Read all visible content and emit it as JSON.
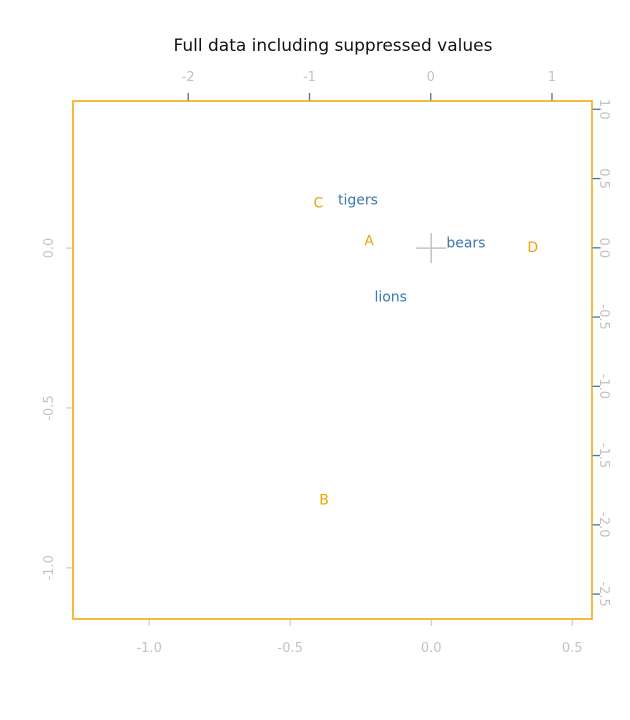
{
  "chart_data": {
    "type": "scatter",
    "title": "Full data including suppressed values",
    "axes": {
      "bottom": {
        "range": [
          -1.27,
          0.57
        ],
        "ticks": [
          -1.0,
          -0.5,
          0.0,
          0.5
        ],
        "tick_labels": [
          "-1.0",
          "-0.5",
          "0.0",
          "0.5"
        ],
        "color": "#c2c2c2"
      },
      "left": {
        "range": [
          -1.16,
          0.46
        ],
        "ticks": [
          0.0,
          -0.5,
          -1.0
        ],
        "tick_labels": [
          "0.0",
          "-0.5",
          "-1.0"
        ],
        "color": "#c2c2c2"
      },
      "top": {
        "range": [
          -2.95,
          1.33
        ],
        "ticks": [
          -2,
          -1,
          0,
          1
        ],
        "tick_labels": [
          "-2",
          "-1",
          "0",
          "1"
        ],
        "color": "#3a78ad"
      },
      "right": {
        "range": [
          -2.68,
          1.06
        ],
        "ticks": [
          1.0,
          0.5,
          0.0,
          -0.5,
          -1.0,
          -1.5,
          -2.0,
          -2.5
        ],
        "tick_labels": [
          "1.0",
          "0.5",
          "0.0",
          "-0.5",
          "-1.0",
          "-1.5",
          "-2.0",
          "-2.5"
        ],
        "color": "#3a78ad"
      }
    },
    "series": [
      {
        "axes": [
          "bottom",
          "left"
        ],
        "color": "#f2a300",
        "points": [
          {
            "label": "A",
            "x": -0.22,
            "y": 0.02
          },
          {
            "label": "B",
            "x": -0.38,
            "y": -0.79
          },
          {
            "label": "C",
            "x": -0.4,
            "y": 0.14
          },
          {
            "label": "D",
            "x": 0.36,
            "y": 0.0
          }
        ]
      },
      {
        "axes": [
          "top",
          "right"
        ],
        "color": "#3a78ad",
        "points": [
          {
            "label": "tigers",
            "x": -0.6,
            "y": 0.34
          },
          {
            "label": "bears",
            "x": 0.29,
            "y": 0.03
          },
          {
            "label": "lions",
            "x": -0.33,
            "y": -0.36
          }
        ]
      }
    ],
    "origin_marker_color": "#c2c2c2",
    "frame_color": "#f2a300",
    "grid": false,
    "legend": "none"
  }
}
